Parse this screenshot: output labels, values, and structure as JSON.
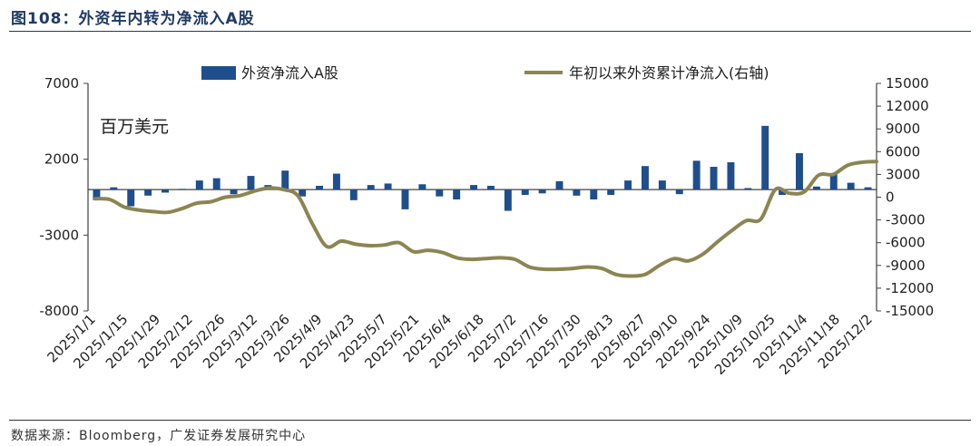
{
  "header": {
    "title": "图108：外资年内转为净流入A股"
  },
  "footer": {
    "source": "数据来源：Bloomberg，广发证券发展研究中心"
  },
  "colors": {
    "bar": "#1f4e8c",
    "line": "#8c8552",
    "axis": "#404040",
    "title": "#1f3a66"
  },
  "chart_data": {
    "type": "bar+line",
    "unit_label": "百万美元",
    "left_axis": {
      "min": -8000,
      "max": 7000,
      "ticks": [
        7000,
        2000,
        -3000,
        -8000
      ]
    },
    "right_axis": {
      "min": -15000,
      "max": 15000,
      "ticks": [
        15000,
        12000,
        9000,
        6000,
        3000,
        0,
        -3000,
        -6000,
        -9000,
        -12000,
        -15000
      ]
    },
    "x_tick_labels": [
      "2025/1/1",
      "2025/1/15",
      "2025/1/29",
      "2025/2/12",
      "2025/2/26",
      "2025/3/12",
      "2025/3/26",
      "2025/4/9",
      "2025/4/23",
      "2025/5/7",
      "2025/5/21",
      "2025/6/4",
      "2025/6/18",
      "2025/7/2",
      "2025/7/16",
      "2025/7/30",
      "2025/8/13",
      "2025/8/27",
      "2025/9/10",
      "2025/9/24",
      "2025/10/9",
      "2025/10/25",
      "2025/11/4",
      "2025/11/18",
      "2025/12/2"
    ],
    "series": [
      {
        "name": "外资净流入A股",
        "type": "bar",
        "axis": "left",
        "values": [
          -700,
          150,
          -1100,
          -400,
          -200,
          50,
          600,
          750,
          -300,
          900,
          300,
          1250,
          -450,
          250,
          1050,
          -700,
          300,
          400,
          -1300,
          350,
          -450,
          -650,
          300,
          250,
          -1400,
          -350,
          -250,
          550,
          -400,
          -650,
          -350,
          600,
          1550,
          600,
          -300,
          1900,
          1500,
          1800,
          100,
          4200,
          -350,
          2400,
          200,
          1000,
          450,
          150
        ]
      },
      {
        "name": "年初以来外资累计净流入(右轴)",
        "type": "line",
        "axis": "right",
        "values": [
          -200,
          -300,
          -1300,
          -1700,
          -1900,
          -2000,
          -1500,
          -800,
          -600,
          0,
          200,
          800,
          1200,
          1000,
          200,
          -3500,
          -6500,
          -5800,
          -6200,
          -6400,
          -6300,
          -6000,
          -7200,
          -7000,
          -7300,
          -8000,
          -8200,
          -8100,
          -8000,
          -8200,
          -9200,
          -9500,
          -9500,
          -9400,
          -9200,
          -9400,
          -10200,
          -10400,
          -10200,
          -9000,
          -8100,
          -8400,
          -7500,
          -5900,
          -4400,
          -3100,
          -2900,
          1000,
          500,
          700,
          2900,
          3000,
          4200,
          4600,
          4700
        ]
      }
    ]
  }
}
